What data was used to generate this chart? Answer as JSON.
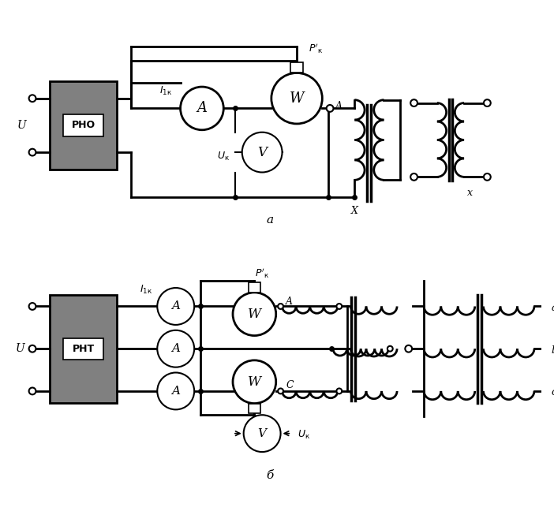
{
  "bg_color": "#ffffff",
  "line_color": "#000000",
  "gray_fill": "#808080",
  "title_a": "а",
  "title_b": "б",
  "label_RHO": "PHO",
  "label_RHT": "PHT",
  "label_A": "A",
  "label_W": "W",
  "label_V": "V",
  "label_U": "U"
}
